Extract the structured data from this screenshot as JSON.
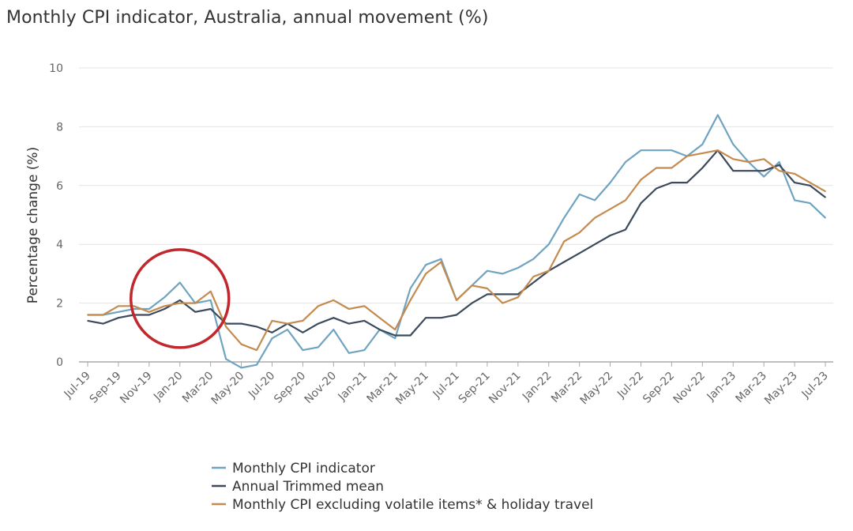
{
  "chart_data": {
    "type": "line",
    "title": "Monthly CPI indicator, Australia, annual movement (%)",
    "xlabel": "",
    "ylabel": "Percentage change (%)",
    "ylim": [
      -0.2,
      10
    ],
    "yticks": [
      0,
      2,
      4,
      6,
      8,
      10
    ],
    "grid": "horizontal",
    "legend_position": "bottom-left",
    "categories": [
      "Jul-19",
      "Aug-19",
      "Sep-19",
      "Oct-19",
      "Nov-19",
      "Dec-19",
      "Jan-20",
      "Feb-20",
      "Mar-20",
      "Apr-20",
      "May-20",
      "Jun-20",
      "Jul-20",
      "Aug-20",
      "Sep-20",
      "Oct-20",
      "Nov-20",
      "Dec-20",
      "Jan-21",
      "Feb-21",
      "Mar-21",
      "Apr-21",
      "May-21",
      "Jun-21",
      "Jul-21",
      "Aug-21",
      "Sep-21",
      "Oct-21",
      "Nov-21",
      "Dec-21",
      "Jan-22",
      "Feb-22",
      "Mar-22",
      "Apr-22",
      "May-22",
      "Jun-22",
      "Jul-22",
      "Aug-22",
      "Sep-22",
      "Oct-22",
      "Nov-22",
      "Dec-22",
      "Jan-23",
      "Feb-23",
      "Mar-23",
      "Apr-23",
      "May-23",
      "Jun-23",
      "Jul-23"
    ],
    "tick_labels": [
      "Jul-19",
      "Sep-19",
      "Nov-19",
      "Jan-20",
      "Mar-20",
      "May-20",
      "Jul-20",
      "Sep-20",
      "Nov-20",
      "Jan-21",
      "Mar-21",
      "May-21",
      "Jul-21",
      "Sep-21",
      "Nov-21",
      "Jan-22",
      "Mar-22",
      "May-22",
      "Jul-22",
      "Sep-22",
      "Nov-22",
      "Jan-23",
      "Mar-23",
      "May-23",
      "Jul-23"
    ],
    "series": [
      {
        "name": "Monthly CPI indicator",
        "color": "#6fa3c0",
        "values": [
          1.6,
          1.6,
          1.7,
          1.8,
          1.8,
          2.2,
          2.7,
          2.0,
          2.1,
          0.1,
          -0.2,
          -0.1,
          0.8,
          1.1,
          0.4,
          0.5,
          1.1,
          0.3,
          0.4,
          1.1,
          0.8,
          2.5,
          3.3,
          3.5,
          2.1,
          2.6,
          3.1,
          3.0,
          3.2,
          3.5,
          4.0,
          4.9,
          5.7,
          5.5,
          6.1,
          6.8,
          7.2,
          7.2,
          7.2,
          7.0,
          7.4,
          8.4,
          7.4,
          6.8,
          6.3,
          6.8,
          5.5,
          5.4,
          4.9
        ]
      },
      {
        "name": "Annual Trimmed mean",
        "color": "#3b4a5c",
        "values": [
          1.4,
          1.3,
          1.5,
          1.6,
          1.6,
          1.8,
          2.1,
          1.7,
          1.8,
          1.3,
          1.3,
          1.2,
          1.0,
          1.3,
          1.0,
          1.3,
          1.5,
          1.3,
          1.4,
          1.1,
          0.9,
          0.9,
          1.5,
          1.5,
          1.6,
          2.0,
          2.3,
          2.3,
          2.3,
          2.7,
          3.1,
          3.4,
          3.7,
          4.0,
          4.3,
          4.5,
          5.4,
          5.9,
          6.1,
          6.1,
          6.6,
          7.2,
          6.5,
          6.5,
          6.5,
          6.7,
          6.1,
          6.0,
          5.6
        ]
      },
      {
        "name": "Monthly CPI excluding volatile items* & holiday travel",
        "color": "#c48a4e",
        "values": [
          1.6,
          1.6,
          1.9,
          1.9,
          1.7,
          1.9,
          2.0,
          2.0,
          2.4,
          1.2,
          0.6,
          0.4,
          1.4,
          1.3,
          1.4,
          1.9,
          2.1,
          1.8,
          1.9,
          1.5,
          1.1,
          2.1,
          3.0,
          3.4,
          2.1,
          2.6,
          2.5,
          2.0,
          2.2,
          2.9,
          3.1,
          4.1,
          4.4,
          4.9,
          5.2,
          5.5,
          6.2,
          6.6,
          6.6,
          7.0,
          7.1,
          7.2,
          6.9,
          6.8,
          6.9,
          6.5,
          6.4,
          6.1,
          5.8
        ]
      }
    ],
    "annotation": {
      "shape": "circle",
      "color": "#c0282d",
      "x": "Jan-20",
      "y": 2.1
    }
  }
}
